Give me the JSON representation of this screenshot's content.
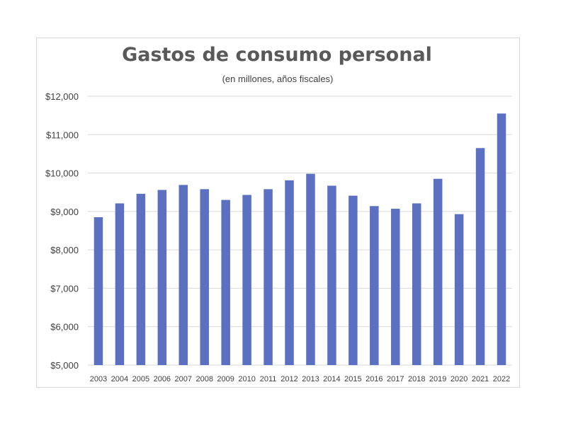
{
  "chart_data": {
    "type": "bar",
    "title": "Gastos de consumo personal",
    "subtitle": "(en millones, años fiscales)",
    "xlabel": "",
    "ylabel": "",
    "categories": [
      "2003",
      "2004",
      "2005",
      "2006",
      "2007",
      "2008",
      "2009",
      "2010",
      "2011",
      "2012",
      "2013",
      "2014",
      "2015",
      "2016",
      "2017",
      "2018",
      "2019",
      "2020",
      "2021",
      "2022"
    ],
    "values": [
      8850,
      9210,
      9460,
      9560,
      9690,
      9580,
      9300,
      9430,
      9580,
      9810,
      9980,
      9670,
      9410,
      9140,
      9070,
      9210,
      9850,
      8930,
      10650,
      11550
    ],
    "ylim": [
      5000,
      12000
    ],
    "yticks": [
      5000,
      6000,
      7000,
      8000,
      9000,
      10000,
      11000,
      12000
    ],
    "ytick_labels": [
      "$5,000",
      "$6,000",
      "$7,000",
      "$8,000",
      "$9,000",
      "$10,000",
      "$11,000",
      "$12,000"
    ],
    "bar_color": "#5b70c0",
    "grid": true,
    "gridline_color": "#d9d9d9",
    "legend": "none"
  }
}
